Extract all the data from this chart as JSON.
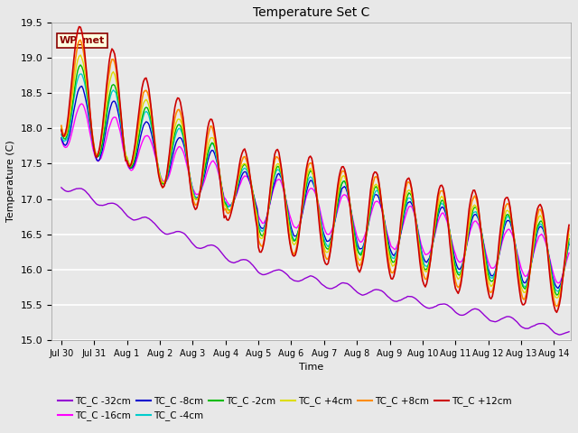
{
  "title": "Temperature Set C",
  "xlabel": "Time",
  "ylabel": "Temperature (C)",
  "ylim": [
    15.0,
    19.5
  ],
  "annotation": "WP_met",
  "series": {
    "TC_C -32cm": {
      "color": "#9400D3",
      "lw": 1.0
    },
    "TC_C -16cm": {
      "color": "#FF00FF",
      "lw": 1.0
    },
    "TC_C -8cm": {
      "color": "#0000CD",
      "lw": 1.0
    },
    "TC_C -4cm": {
      "color": "#00CCCC",
      "lw": 1.0
    },
    "TC_C -2cm": {
      "color": "#00BB00",
      "lw": 1.0
    },
    "TC_C +4cm": {
      "color": "#DDDD00",
      "lw": 1.0
    },
    "TC_C +8cm": {
      "color": "#FF8C00",
      "lw": 1.2
    },
    "TC_C +12cm": {
      "color": "#CC0000",
      "lw": 1.2
    }
  },
  "yticks": [
    15.0,
    15.5,
    16.0,
    16.5,
    17.0,
    17.5,
    18.0,
    18.5,
    19.0,
    19.5
  ],
  "xtick_labels": [
    "Jul 30",
    "Jul 31",
    "Aug 1",
    "Aug 2",
    "Aug 3",
    "Aug 4",
    "Aug 5",
    "Aug 6",
    "Aug 7",
    "Aug 8",
    "Aug 9",
    "Aug 10",
    "Aug 11",
    "Aug 12",
    "Aug 13",
    "Aug 14"
  ],
  "legend_order": [
    "TC_C -32cm",
    "TC_C -16cm",
    "TC_C -8cm",
    "TC_C -4cm",
    "TC_C -2cm",
    "TC_C +4cm",
    "TC_C +8cm",
    "TC_C +12cm"
  ]
}
